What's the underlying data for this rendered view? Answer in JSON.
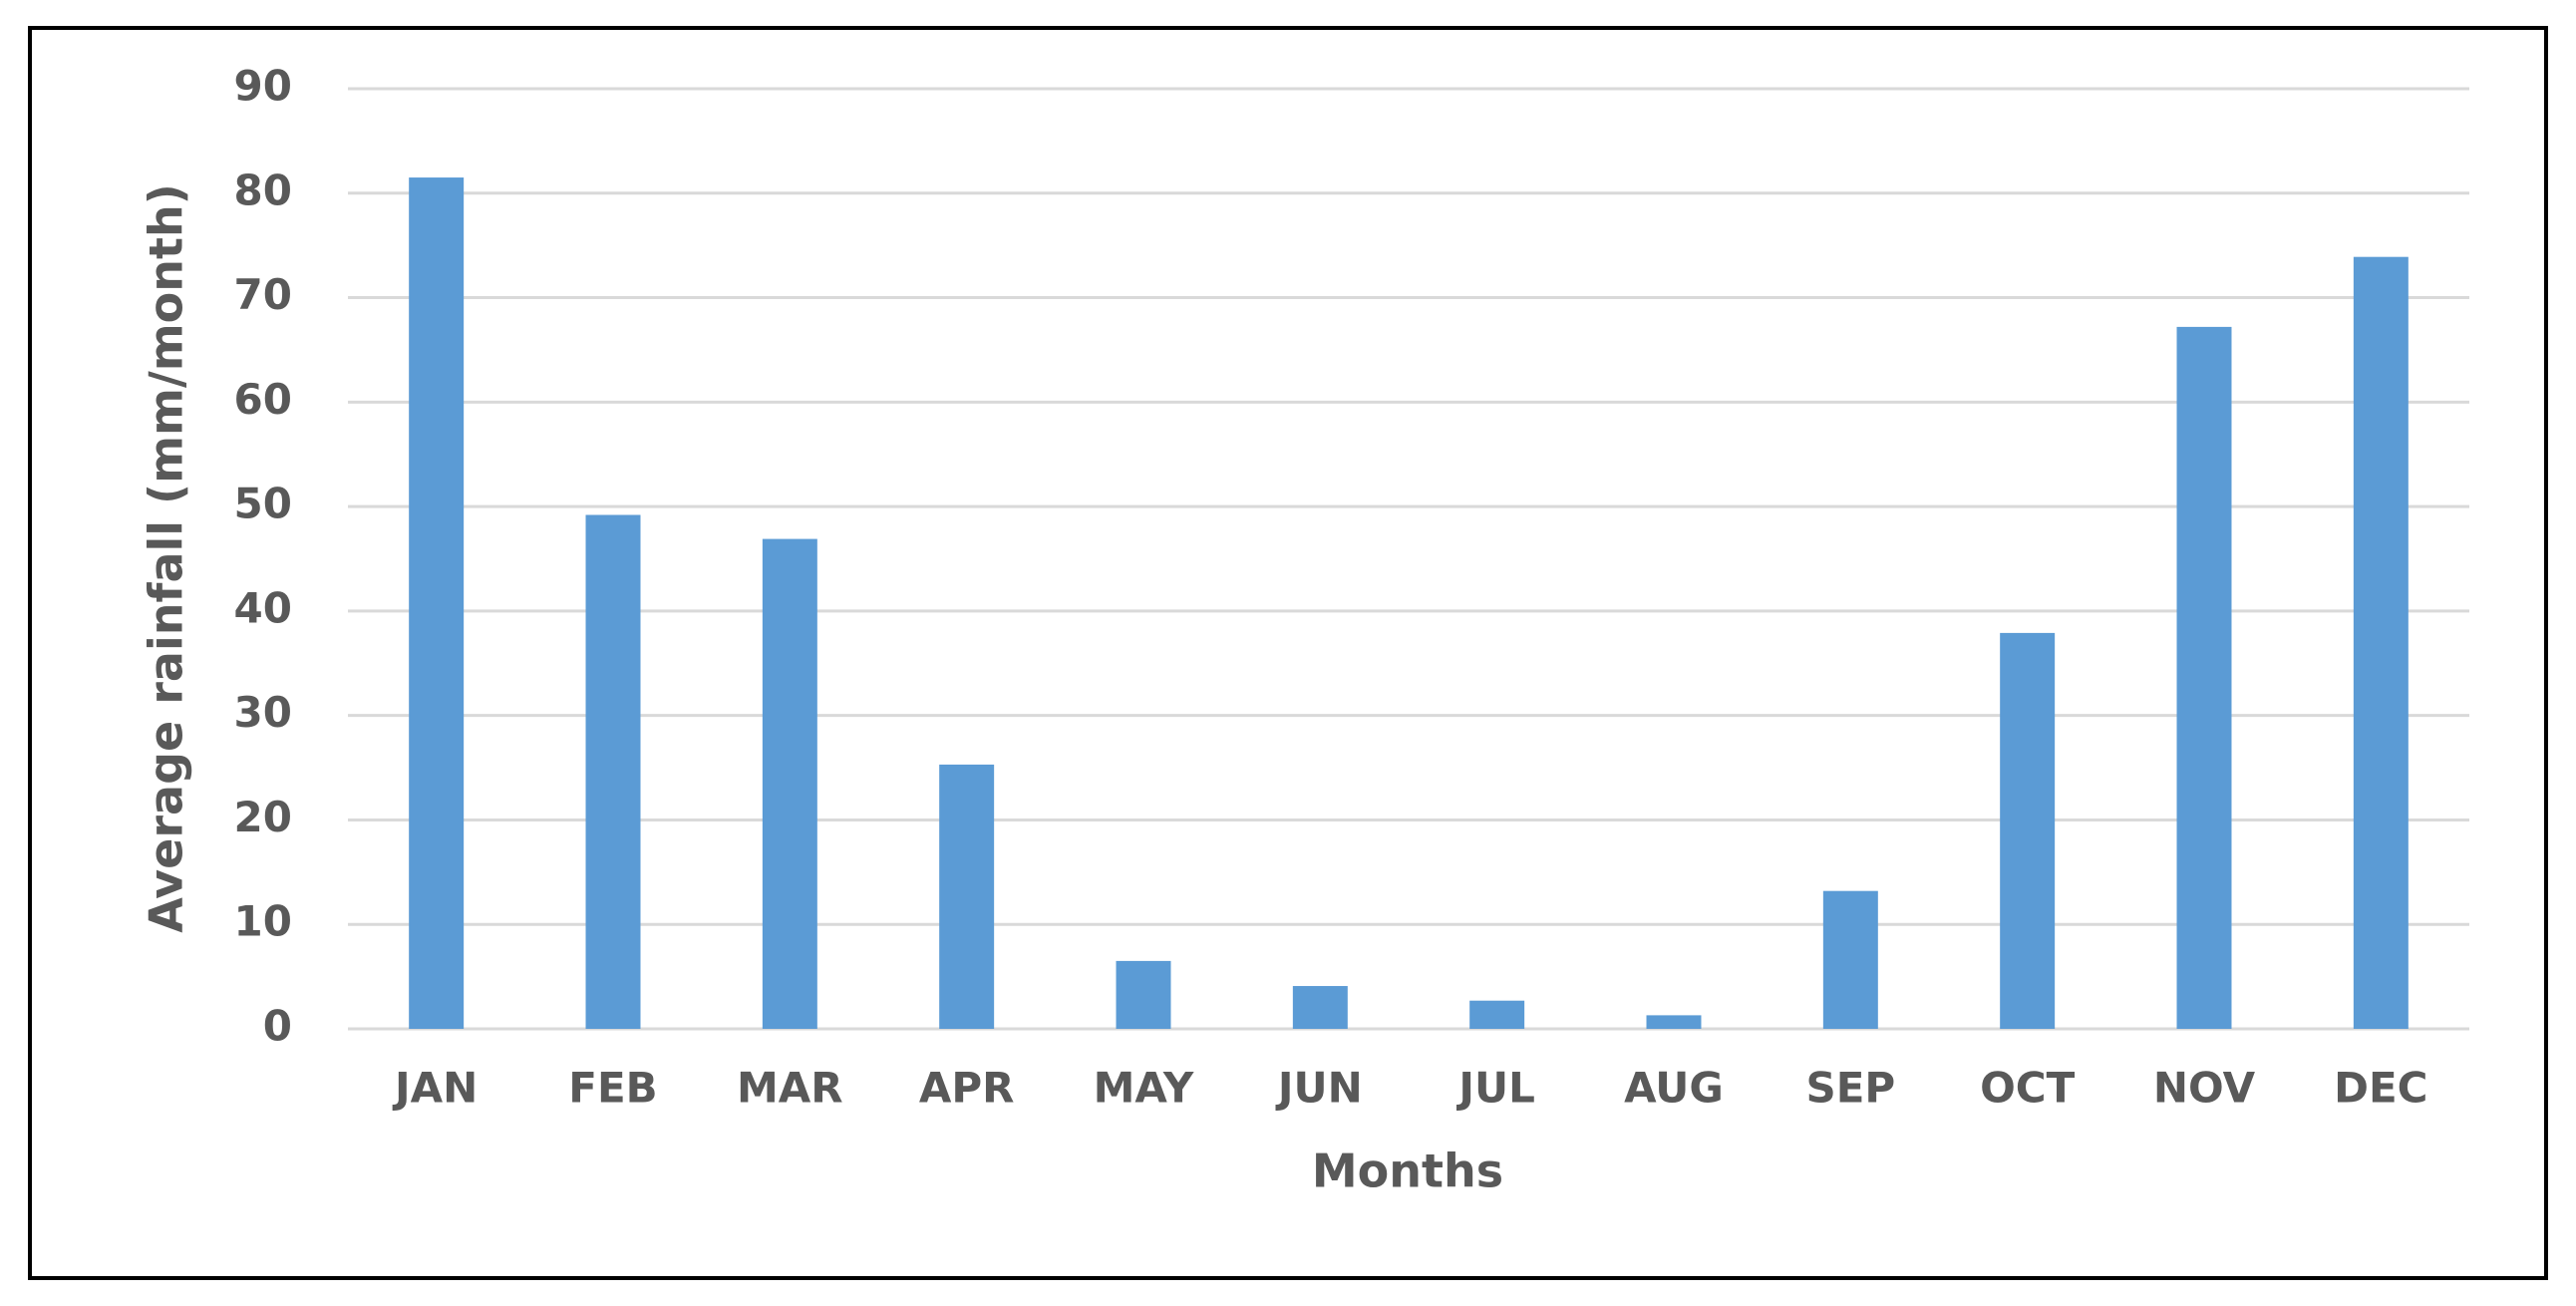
{
  "chart_data": {
    "type": "bar",
    "x_label": "Months",
    "y_label": "Average rainfall (mm/month)",
    "categories": [
      "JAN",
      "FEB",
      "MAR",
      "APR",
      "MAY",
      "JUN",
      "JUL",
      "AUG",
      "SEP",
      "OCT",
      "NOV",
      "DEC"
    ],
    "values": [
      81.5,
      49.2,
      46.9,
      25.3,
      6.5,
      4.1,
      2.7,
      1.3,
      13.2,
      37.9,
      67.2,
      73.9
    ],
    "color": "#5b9bd5",
    "ylim": [
      0,
      90
    ],
    "yticks": [
      0,
      10,
      20,
      30,
      40,
      50,
      60,
      70,
      80,
      90
    ],
    "grid": true
  }
}
